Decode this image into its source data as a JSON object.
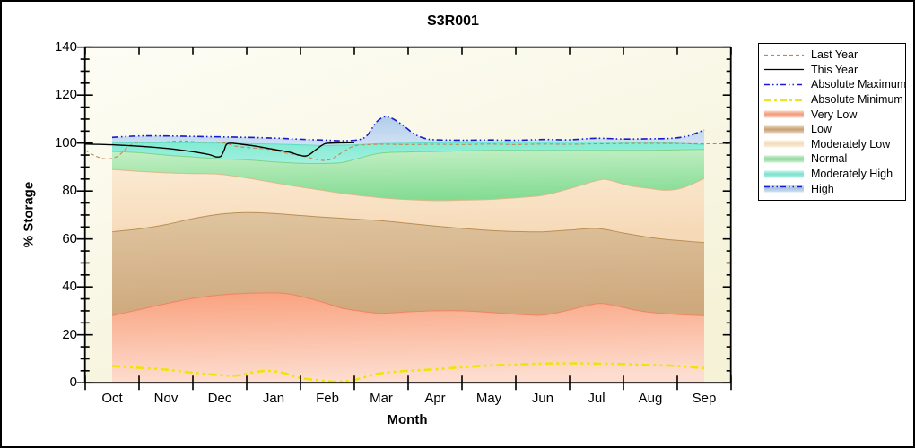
{
  "title": "S3R001",
  "axes": {
    "x_label": "Month",
    "y_label": "% Storage",
    "y_ticks": [
      0,
      20,
      40,
      60,
      80,
      100,
      120,
      140
    ],
    "y_minor_step": 5,
    "y_min": 0,
    "y_max": 140
  },
  "colors": {
    "figure_bg": "#ffffff",
    "plot_bg_top": "#fdfdf5",
    "plot_bg_bottom": "#f5f2d8",
    "axis": "#000000"
  },
  "legend": {
    "items": [
      {
        "label": "Last Year",
        "type": "line",
        "color": "#c6854f",
        "width": 1.2,
        "dash": "4 3"
      },
      {
        "label": "This Year",
        "type": "line",
        "color": "#000000",
        "width": 1.3,
        "dash": ""
      },
      {
        "label": "Absolute Maximum",
        "type": "line",
        "color": "#1a1ad0",
        "width": 1.5,
        "dash": "6 3 1.5 3 1.5 3"
      },
      {
        "label": "Absolute Minimum",
        "type": "line",
        "color": "#f0e405",
        "width": 2.8,
        "dash": "8 3 3 3"
      },
      {
        "label": "Very Low",
        "type": "band",
        "color": "#f29a7a",
        "light": "#fbd6c6"
      },
      {
        "label": "Low",
        "type": "band",
        "color": "#c79e72",
        "light": "#e9d6bd"
      },
      {
        "label": "Moderately Low",
        "type": "band",
        "color": "#f3dcbd",
        "light": "#fbf0de"
      },
      {
        "label": "Normal",
        "type": "band",
        "color": "#8cd798",
        "light": "#d2f0d4"
      },
      {
        "label": "Moderately High",
        "type": "band",
        "color": "#79e2ca",
        "light": "#c6f4e8"
      },
      {
        "label": "High",
        "type": "band",
        "color": "#a9c4e4",
        "light": "#d6e4f4",
        "overlay": {
          "color": "#1a1ad0",
          "width": 1.5,
          "dash": "6 3 1.5 3 1.5 3"
        }
      }
    ]
  },
  "chart_data": {
    "type": "area",
    "title": "S3R001",
    "xlabel": "Month",
    "ylabel": "% Storage",
    "ylim": [
      0,
      140
    ],
    "months": [
      "Oct",
      "Nov",
      "Dec",
      "Jan",
      "Feb",
      "Mar",
      "Apr",
      "May",
      "Jun",
      "Jul",
      "Aug",
      "Sep"
    ],
    "boundaries": {
      "abs_max": [
        [
          0,
          102.4
        ],
        [
          0.5,
          103
        ],
        [
          1,
          103
        ],
        [
          1.5,
          102.8
        ],
        [
          2,
          102.6
        ],
        [
          2.5,
          102.4
        ],
        [
          3,
          102.1
        ],
        [
          3.5,
          101.6
        ],
        [
          4,
          101.2
        ],
        [
          4.3,
          101
        ],
        [
          4.6,
          101.5
        ],
        [
          4.75,
          103.5
        ],
        [
          4.9,
          108.5
        ],
        [
          5.05,
          110.9
        ],
        [
          5.2,
          110.3
        ],
        [
          5.4,
          107.5
        ],
        [
          5.6,
          104
        ],
        [
          5.8,
          102
        ],
        [
          6,
          101.4
        ],
        [
          6.5,
          101.2
        ],
        [
          7,
          101.3
        ],
        [
          7.5,
          101.2
        ],
        [
          8,
          101.5
        ],
        [
          8.5,
          101.4
        ],
        [
          9,
          102
        ],
        [
          9.5,
          101.7
        ],
        [
          10,
          101.8
        ],
        [
          10.4,
          102
        ],
        [
          10.7,
          103
        ],
        [
          11,
          105.5
        ]
      ],
      "high_bottom": [
        [
          0,
          100
        ],
        [
          0.5,
          100.1
        ],
        [
          1,
          100.2
        ],
        [
          1.5,
          100.1
        ],
        [
          2,
          100
        ],
        [
          2.5,
          99.8
        ],
        [
          3,
          99.6
        ],
        [
          3.5,
          99.3
        ],
        [
          4,
          99
        ],
        [
          4.5,
          99.3
        ],
        [
          5,
          99.8
        ],
        [
          5.5,
          100
        ],
        [
          6,
          100.2
        ],
        [
          6.5,
          100.2
        ],
        [
          7,
          100.3
        ],
        [
          7.5,
          100.3
        ],
        [
          8,
          100.3
        ],
        [
          8.5,
          100.4
        ],
        [
          9,
          100.5
        ],
        [
          9.5,
          100.3
        ],
        [
          10,
          100.2
        ],
        [
          10.5,
          100
        ],
        [
          11,
          99.3
        ]
      ],
      "mod_high_bottom": [
        [
          0,
          96.5
        ],
        [
          0.5,
          96
        ],
        [
          1,
          95
        ],
        [
          1.5,
          94.2
        ],
        [
          2,
          93.5
        ],
        [
          2.5,
          93
        ],
        [
          3,
          92.2
        ],
        [
          3.5,
          91.6
        ],
        [
          4,
          91.5
        ],
        [
          4.3,
          92
        ],
        [
          4.6,
          93.8
        ],
        [
          5,
          95.8
        ],
        [
          5.5,
          96.3
        ],
        [
          6,
          96.5
        ],
        [
          6.5,
          96.8
        ],
        [
          7,
          97
        ],
        [
          7.5,
          97
        ],
        [
          8,
          97
        ],
        [
          8.5,
          97
        ],
        [
          9,
          97
        ],
        [
          9.5,
          97
        ],
        [
          10,
          97
        ],
        [
          10.5,
          97.2
        ],
        [
          11,
          97.4
        ]
      ],
      "normal_bottom": [
        [
          0,
          89
        ],
        [
          0.5,
          88.2
        ],
        [
          1,
          87.6
        ],
        [
          1.5,
          87.3
        ],
        [
          2,
          87
        ],
        [
          2.5,
          85.5
        ],
        [
          3,
          83.5
        ],
        [
          3.5,
          81.7
        ],
        [
          4,
          80
        ],
        [
          4.5,
          78.4
        ],
        [
          5,
          77.2
        ],
        [
          5.5,
          76.4
        ],
        [
          6,
          76
        ],
        [
          6.5,
          76.2
        ],
        [
          7,
          76.5
        ],
        [
          7.5,
          77.2
        ],
        [
          8,
          78.2
        ],
        [
          8.5,
          81
        ],
        [
          9,
          84.3
        ],
        [
          9.2,
          84.7
        ],
        [
          9.6,
          82.3
        ],
        [
          10,
          81
        ],
        [
          10.3,
          80.3
        ],
        [
          10.6,
          81.3
        ],
        [
          11,
          85.2
        ]
      ],
      "low_top": [
        [
          0,
          63
        ],
        [
          0.5,
          64.2
        ],
        [
          1,
          66
        ],
        [
          1.5,
          68.5
        ],
        [
          2,
          70.3
        ],
        [
          2.5,
          71
        ],
        [
          3,
          70.6
        ],
        [
          3.5,
          69.8
        ],
        [
          4,
          69
        ],
        [
          4.5,
          68.3
        ],
        [
          5,
          67.6
        ],
        [
          5.5,
          66.5
        ],
        [
          6,
          65.4
        ],
        [
          6.5,
          64.4
        ],
        [
          7,
          63.6
        ],
        [
          7.5,
          63.1
        ],
        [
          8,
          63
        ],
        [
          8.5,
          63.7
        ],
        [
          9,
          64.4
        ],
        [
          9.5,
          62.5
        ],
        [
          10,
          60.6
        ],
        [
          10.5,
          59.4
        ],
        [
          11,
          58.5
        ]
      ],
      "very_low_top": [
        [
          0,
          28
        ],
        [
          0.5,
          30.5
        ],
        [
          1,
          33
        ],
        [
          1.5,
          35.2
        ],
        [
          2,
          36.6
        ],
        [
          2.5,
          37.3
        ],
        [
          3,
          37.5
        ],
        [
          3.3,
          37
        ],
        [
          3.7,
          35
        ],
        [
          4,
          33
        ],
        [
          4.3,
          31
        ],
        [
          4.7,
          29.6
        ],
        [
          5,
          29
        ],
        [
          5.5,
          29.6
        ],
        [
          6,
          30
        ],
        [
          6.5,
          30
        ],
        [
          7,
          29.4
        ],
        [
          7.5,
          28.6
        ],
        [
          8,
          28.2
        ],
        [
          8.5,
          30.4
        ],
        [
          9,
          33
        ],
        [
          9.3,
          32.4
        ],
        [
          9.7,
          30.4
        ],
        [
          10,
          29.4
        ],
        [
          10.5,
          28.5
        ],
        [
          11,
          28
        ]
      ],
      "zero": [
        [
          0,
          0
        ],
        [
          11,
          0
        ]
      ]
    },
    "bands": [
      {
        "name": "High",
        "top": "abs_max",
        "bottom": "high_bottom",
        "fill_top": "#afccea",
        "fill_bottom": "#cfe0f3",
        "edge": ""
      },
      {
        "name": "Moderately High",
        "top": "high_bottom",
        "bottom": "mod_high_bottom",
        "fill_top": "#80ebd3",
        "fill_bottom": "#a2f0de",
        "edge": "#62ddc2"
      },
      {
        "name": "Normal",
        "top": "mod_high_bottom",
        "bottom": "normal_bottom",
        "fill_top": "#c6f0c6",
        "fill_bottom": "#84dc94",
        "edge": "#7cd48a"
      },
      {
        "name": "Moderately Low",
        "top": "normal_bottom",
        "bottom": "low_top",
        "fill_top": "#fbe9d1",
        "fill_bottom": "#f6d9b6",
        "edge": "#dcba8a"
      },
      {
        "name": "Low",
        "top": "low_top",
        "bottom": "very_low_top",
        "fill_top": "#dfc5a0",
        "fill_bottom": "#cfa97e",
        "edge": "#bb8f55"
      },
      {
        "name": "Very Low",
        "top": "very_low_top",
        "bottom": "zero",
        "fill_top": "#f9a17e",
        "fill_bottom": "#fdddcf",
        "edge": "#ef8560"
      }
    ],
    "lines": [
      {
        "name": "Absolute Minimum",
        "color": "#f0e405",
        "width": 2.6,
        "dash": "9 4 3 4 3 4",
        "points": [
          [
            0,
            7
          ],
          [
            0.4,
            6.4
          ],
          [
            0.8,
            5.8
          ],
          [
            1,
            5.5
          ],
          [
            1.5,
            4.2
          ],
          [
            2,
            3.2
          ],
          [
            2.3,
            3
          ],
          [
            2.6,
            4.3
          ],
          [
            2.9,
            5
          ],
          [
            3.2,
            4
          ],
          [
            3.5,
            2
          ],
          [
            3.9,
            0.9
          ],
          [
            4.2,
            0.4
          ],
          [
            4.5,
            1.2
          ],
          [
            4.8,
            3
          ],
          [
            5,
            4
          ],
          [
            5.5,
            5
          ],
          [
            6,
            5.6
          ],
          [
            6.5,
            6.5
          ],
          [
            7,
            7.2
          ],
          [
            7.5,
            7.6
          ],
          [
            8,
            8
          ],
          [
            8.5,
            8.1
          ],
          [
            9,
            8
          ],
          [
            9.5,
            7.8
          ],
          [
            10,
            7.4
          ],
          [
            10.5,
            7
          ],
          [
            11,
            6.1
          ]
        ]
      },
      {
        "name": "Last Year",
        "color": "#c6854f",
        "width": 1.1,
        "dash": "4 3",
        "points": [
          [
            -0.5,
            97
          ],
          [
            -0.3,
            94.5
          ],
          [
            -0.1,
            93.4
          ],
          [
            0.1,
            94.5
          ],
          [
            0.3,
            98.5
          ],
          [
            0.45,
            100.2
          ],
          [
            0.7,
            100.4
          ],
          [
            1,
            100.5
          ],
          [
            1.3,
            100.9
          ],
          [
            1.6,
            100.4
          ],
          [
            1.9,
            100.4
          ],
          [
            2.1,
            100
          ],
          [
            2.3,
            98.7
          ],
          [
            2.6,
            98
          ],
          [
            2.9,
            97.4
          ],
          [
            3.2,
            96
          ],
          [
            3.5,
            94.8
          ],
          [
            3.8,
            93.2
          ],
          [
            3.95,
            92.8
          ],
          [
            4.1,
            93.6
          ],
          [
            4.3,
            96.5
          ],
          [
            4.5,
            98.8
          ],
          [
            4.7,
            99.3
          ],
          [
            5,
            99.5
          ],
          [
            5.5,
            99.4
          ],
          [
            6,
            99.5
          ],
          [
            6.5,
            99.4
          ],
          [
            7,
            99.6
          ],
          [
            7.5,
            99.4
          ],
          [
            8,
            99.6
          ],
          [
            8.5,
            99.5
          ],
          [
            9,
            99.7
          ],
          [
            9.5,
            99.8
          ],
          [
            10,
            99.9
          ],
          [
            10.5,
            99.8
          ],
          [
            11,
            99.7
          ],
          [
            11.5,
            99.7
          ]
        ]
      },
      {
        "name": "Absolute Maximum",
        "color": "#1a1ad0",
        "width": 1.6,
        "dash": "7 3 1.5 3 1.5 3",
        "ref": "abs_max"
      },
      {
        "name": "This Year",
        "color": "#000000",
        "width": 1.4,
        "dash": "",
        "points": [
          [
            -0.5,
            99.6
          ],
          [
            0,
            99.3
          ],
          [
            0.5,
            98.7
          ],
          [
            1,
            97.8
          ],
          [
            1.5,
            96.4
          ],
          [
            1.8,
            95.2
          ],
          [
            1.92,
            94.3
          ],
          [
            2.02,
            94.5
          ],
          [
            2.08,
            97
          ],
          [
            2.15,
            99.8
          ],
          [
            2.4,
            99.5
          ],
          [
            2.7,
            98.6
          ],
          [
            3,
            97.4
          ],
          [
            3.3,
            96.2
          ],
          [
            3.45,
            95.1
          ],
          [
            3.55,
            94.6
          ],
          [
            3.65,
            95
          ],
          [
            3.8,
            97.5
          ],
          [
            3.95,
            99.7
          ],
          [
            4.1,
            100
          ],
          [
            4.3,
            100.1
          ],
          [
            4.5,
            100.2
          ]
        ]
      }
    ]
  }
}
